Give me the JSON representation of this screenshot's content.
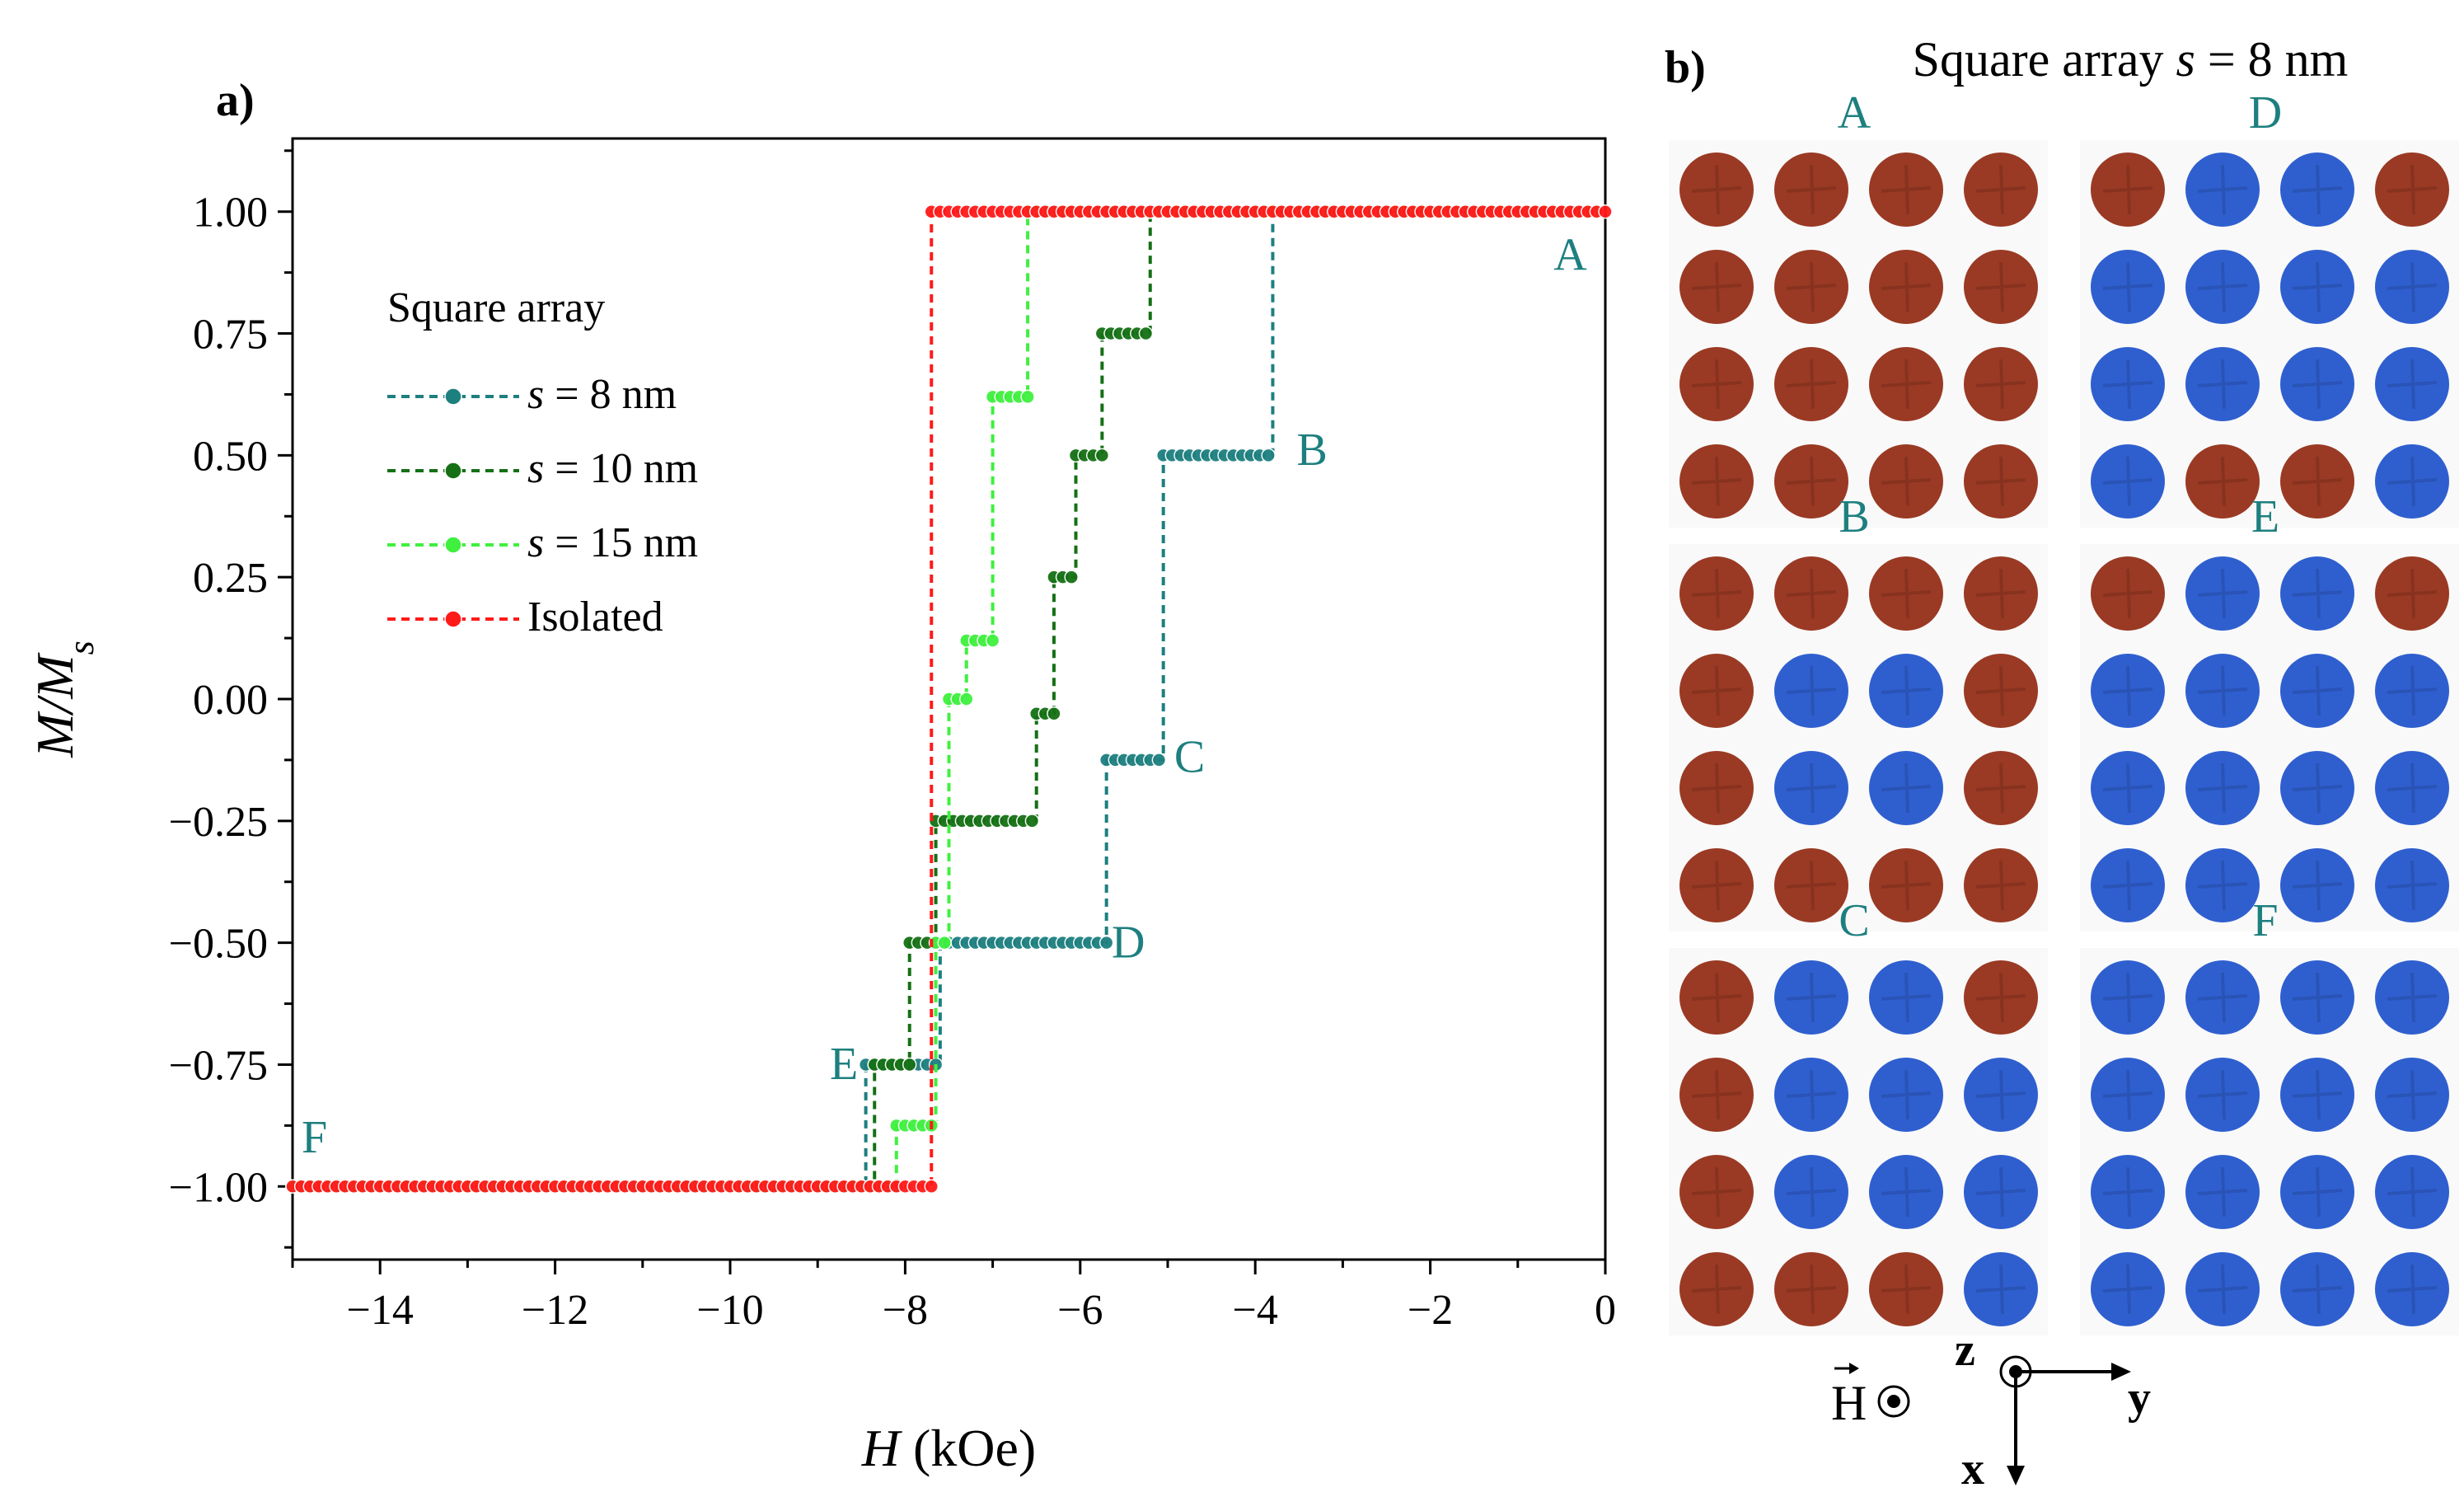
{
  "panel_a_label": "a)",
  "panel_b_label": "b)",
  "colors": {
    "s8": "#1e7f7f",
    "s10": "#157015",
    "s15": "#3ff03f",
    "isolated": "#ff1a1a",
    "brown": "#9a3a24",
    "blue": "#2f5fcf",
    "label_teal": "#1e7f7f"
  },
  "chart_data": {
    "type": "line",
    "title": "",
    "xlabel": "H (kOe)",
    "ylabel": "M/Ms",
    "xlim": [
      -15,
      0
    ],
    "ylim": [
      -1.15,
      1.15
    ],
    "x_ticks": [
      -14,
      -12,
      -10,
      -8,
      -6,
      -4,
      -2,
      0
    ],
    "x_tick_labels": [
      "−14",
      "−12",
      "−10",
      "−8",
      "−6",
      "−4",
      "−2",
      "0"
    ],
    "y_ticks": [
      1.0,
      0.75,
      0.5,
      0.25,
      0.0,
      -0.25,
      -0.5,
      -0.75,
      -1.0
    ],
    "y_tick_labels": [
      "1.00",
      "0.75",
      "0.50",
      "0.25",
      "0.00",
      "−0.25",
      "−0.50",
      "−0.75",
      "−1.00"
    ],
    "legend_title": "Square array",
    "legend_position": "upper-left",
    "series": [
      {
        "key": "s8",
        "name_prefix": "s",
        "name_rest": " = 8 nm",
        "segments": [
          [
            -3.8,
            -0.1,
            1.0
          ],
          [
            -5.05,
            -3.8,
            0.5
          ],
          [
            -5.7,
            -5.05,
            -0.125
          ],
          [
            -7.6,
            -5.7,
            -0.5
          ],
          [
            -8.45,
            -7.6,
            -0.75
          ],
          [
            -15,
            -8.45,
            -1.0
          ]
        ]
      },
      {
        "key": "s10",
        "name_prefix": "s",
        "name_rest": " = 10 nm",
        "segments": [
          [
            -5.2,
            -0.1,
            1.0
          ],
          [
            -5.75,
            -5.2,
            0.75
          ],
          [
            -6.05,
            -5.75,
            0.5
          ],
          [
            -6.3,
            -6.05,
            0.25
          ],
          [
            -6.5,
            -6.3,
            -0.03
          ],
          [
            -7.65,
            -6.5,
            -0.25
          ],
          [
            -7.95,
            -7.65,
            -0.5
          ],
          [
            -8.35,
            -7.95,
            -0.75
          ],
          [
            -15,
            -8.35,
            -1.0
          ]
        ]
      },
      {
        "key": "s15",
        "name_prefix": "s",
        "name_rest": " = 15 nm",
        "segments": [
          [
            -6.6,
            -0.1,
            1.0
          ],
          [
            -7.0,
            -6.6,
            0.62
          ],
          [
            -7.3,
            -7.0,
            0.12
          ],
          [
            -7.5,
            -7.3,
            0.0
          ],
          [
            -7.65,
            -7.5,
            -0.5
          ],
          [
            -8.1,
            -7.65,
            -0.875
          ],
          [
            -15,
            -8.1,
            -1.0
          ]
        ]
      },
      {
        "key": "isolated",
        "name_prefix": "",
        "name_rest": "Isolated",
        "segments": [
          [
            -7.7,
            0.0,
            1.0
          ],
          [
            -15,
            -7.7,
            -1.0
          ]
        ]
      }
    ],
    "annotations": [
      {
        "text": "A",
        "x": -0.4,
        "y": 0.88
      },
      {
        "text": "B",
        "x": -3.35,
        "y": 0.48
      },
      {
        "text": "C",
        "x": -4.75,
        "y": -0.15
      },
      {
        "text": "D",
        "x": -5.45,
        "y": -0.53
      },
      {
        "text": "E",
        "x": -8.7,
        "y": -0.78
      },
      {
        "text": "F",
        "x": -14.75,
        "y": -0.93
      }
    ]
  },
  "panel_b": {
    "title_prefix": "Square array ",
    "title_var": "s",
    "title_rest": " = 8 nm",
    "states": [
      {
        "label": "A",
        "grid": [
          [
            "r",
            "r",
            "r",
            "r"
          ],
          [
            "r",
            "r",
            "r",
            "r"
          ],
          [
            "r",
            "r",
            "r",
            "r"
          ],
          [
            "r",
            "r",
            "r",
            "r"
          ]
        ]
      },
      {
        "label": "D",
        "grid": [
          [
            "r",
            "b",
            "b",
            "r"
          ],
          [
            "b",
            "b",
            "b",
            "b"
          ],
          [
            "b",
            "b",
            "b",
            "b"
          ],
          [
            "b",
            "r",
            "r",
            "b"
          ]
        ]
      },
      {
        "label": "B",
        "grid": [
          [
            "r",
            "r",
            "r",
            "r"
          ],
          [
            "r",
            "b",
            "b",
            "r"
          ],
          [
            "r",
            "b",
            "b",
            "r"
          ],
          [
            "r",
            "r",
            "r",
            "r"
          ]
        ]
      },
      {
        "label": "E",
        "grid": [
          [
            "r",
            "b",
            "b",
            "r"
          ],
          [
            "b",
            "b",
            "b",
            "b"
          ],
          [
            "b",
            "b",
            "b",
            "b"
          ],
          [
            "b",
            "b",
            "b",
            "b"
          ]
        ]
      },
      {
        "label": "C",
        "grid": [
          [
            "r",
            "b",
            "b",
            "r"
          ],
          [
            "r",
            "b",
            "b",
            "b"
          ],
          [
            "r",
            "b",
            "b",
            "b"
          ],
          [
            "r",
            "r",
            "r",
            "b"
          ]
        ]
      },
      {
        "label": "F",
        "grid": [
          [
            "b",
            "b",
            "b",
            "b"
          ],
          [
            "b",
            "b",
            "b",
            "b"
          ],
          [
            "b",
            "b",
            "b",
            "b"
          ],
          [
            "b",
            "b",
            "b",
            "b"
          ]
        ]
      }
    ],
    "field_label": "H",
    "axes_labels": {
      "z": "z",
      "y": "y",
      "x": "x"
    }
  }
}
